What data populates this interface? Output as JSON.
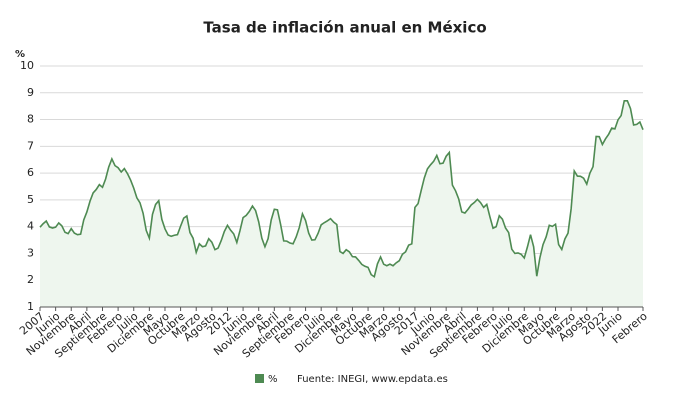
{
  "chart_data": {
    "type": "area-line",
    "title": "Tasa de inflación anual en México",
    "ylabel": "%",
    "source": "Fuente: INEGI, www.epdata.es",
    "categories": [
      "2007",
      null,
      null,
      null,
      null,
      "Junio",
      null,
      null,
      null,
      null,
      "Noviembre",
      null,
      null,
      null,
      null,
      "Abril",
      null,
      null,
      null,
      null,
      "Septiembre",
      null,
      null,
      null,
      null,
      "Febrero",
      null,
      null,
      null,
      null,
      "Julio",
      null,
      null,
      null,
      null,
      "Diciembre",
      null,
      null,
      null,
      null,
      "Mayo",
      null,
      null,
      null,
      null,
      "Octubre",
      null,
      null,
      null,
      null,
      "Marzo",
      null,
      null,
      null,
      null,
      "Agosto",
      null,
      null,
      null,
      null,
      "2012",
      null,
      null,
      null,
      null,
      "Junio",
      null,
      null,
      null,
      null,
      "Noviembre",
      null,
      null,
      null,
      null,
      "Abril",
      null,
      null,
      null,
      null,
      "Septiembre",
      null,
      null,
      null,
      null,
      "Febrero",
      null,
      null,
      null,
      null,
      "Julio",
      null,
      null,
      null,
      null,
      "Diciembre",
      null,
      null,
      null,
      null,
      "Mayo",
      null,
      null,
      null,
      null,
      "Octubre",
      null,
      null,
      null,
      null,
      "Marzo",
      null,
      null,
      null,
      null,
      "Agosto",
      null,
      null,
      null,
      null,
      "2017",
      null,
      null,
      null,
      null,
      "Junio",
      null,
      null,
      null,
      null,
      "Noviembre",
      null,
      null,
      null,
      null,
      "Abril",
      null,
      null,
      null,
      null,
      "Septiembre",
      null,
      null,
      null,
      null,
      "Febrero",
      null,
      null,
      null,
      null,
      "Julio",
      null,
      null,
      null,
      null,
      "Diciembre",
      null,
      null,
      null,
      null,
      "Mayo",
      null,
      null,
      null,
      null,
      "Octubre",
      null,
      null,
      null,
      null,
      "Marzo",
      null,
      null,
      null,
      null,
      "Agosto",
      null,
      null,
      null,
      null,
      "2022",
      null,
      null,
      null,
      null,
      "Junio",
      null,
      null,
      null,
      null,
      null,
      null,
      null,
      "Febrero"
    ],
    "series": [
      {
        "name": "%",
        "color": "#4e8a52",
        "fill": "#eef6ee",
        "values": [
          3.98,
          4.11,
          4.21,
          3.99,
          3.95,
          3.98,
          4.14,
          4.03,
          3.79,
          3.74,
          3.93,
          3.76,
          3.7,
          3.72,
          4.25,
          4.55,
          4.95,
          5.26,
          5.39,
          5.57,
          5.47,
          5.78,
          6.23,
          6.53,
          6.28,
          6.2,
          6.04,
          6.17,
          5.98,
          5.74,
          5.44,
          5.08,
          4.89,
          4.5,
          3.86,
          3.57,
          4.46,
          4.83,
          4.97,
          4.27,
          3.92,
          3.69,
          3.64,
          3.68,
          3.7,
          4.02,
          4.32,
          4.4,
          3.78,
          3.57,
          3.04,
          3.36,
          3.25,
          3.28,
          3.55,
          3.42,
          3.14,
          3.2,
          3.48,
          3.82,
          4.05,
          3.87,
          3.73,
          3.41,
          3.85,
          4.34,
          4.42,
          4.57,
          4.77,
          4.6,
          4.18,
          3.57,
          3.25,
          3.55,
          4.25,
          4.65,
          4.63,
          4.09,
          3.47,
          3.46,
          3.39,
          3.36,
          3.62,
          3.97,
          4.48,
          4.23,
          3.76,
          3.5,
          3.51,
          3.75,
          4.07,
          4.15,
          4.22,
          4.3,
          4.17,
          4.08,
          3.07,
          3.0,
          3.14,
          3.06,
          2.88,
          2.87,
          2.74,
          2.59,
          2.52,
          2.48,
          2.21,
          2.13,
          2.61,
          2.87,
          2.6,
          2.54,
          2.6,
          2.54,
          2.65,
          2.73,
          2.97,
          3.06,
          3.31,
          3.36,
          4.72,
          4.86,
          5.35,
          5.82,
          6.16,
          6.31,
          6.44,
          6.66,
          6.35,
          6.37,
          6.63,
          6.77,
          5.55,
          5.34,
          5.04,
          4.55,
          4.51,
          4.65,
          4.81,
          4.9,
          5.02,
          4.9,
          4.72,
          4.83,
          4.37,
          3.94,
          4.0,
          4.41,
          4.28,
          3.95,
          3.78,
          3.16,
          3.0,
          3.02,
          2.97,
          2.83,
          3.24,
          3.7,
          3.25,
          2.15,
          2.84,
          3.33,
          3.62,
          4.05,
          4.01,
          4.09,
          3.33,
          3.15,
          3.54,
          3.76,
          4.67,
          6.08,
          5.89,
          5.88,
          5.81,
          5.59,
          6.0,
          6.24,
          7.37,
          7.36,
          7.07,
          7.28,
          7.45,
          7.68,
          7.65,
          7.99,
          8.15,
          8.7,
          8.7,
          8.41,
          7.8,
          7.82,
          7.91,
          7.62
        ]
      }
    ],
    "ylim": [
      1,
      10
    ],
    "yticks": [
      1,
      2,
      3,
      4,
      5,
      6,
      7,
      8,
      9,
      10
    ],
    "grid": true
  }
}
